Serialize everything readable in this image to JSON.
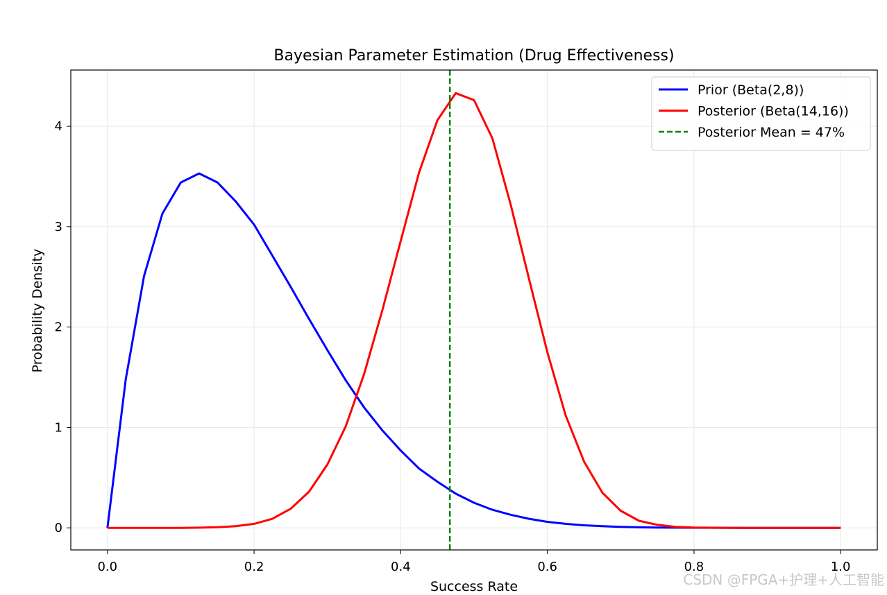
{
  "chart_data": {
    "type": "line",
    "title": "Bayesian Parameter Estimation (Drug Effectiveness)",
    "xlabel": "Success Rate",
    "ylabel": "Probability Density",
    "xlim": [
      -0.05,
      1.05
    ],
    "ylim": [
      -0.22,
      4.56
    ],
    "xticks": [
      0.0,
      0.2,
      0.4,
      0.6,
      0.8,
      1.0
    ],
    "xtick_labels": [
      "0.0",
      "0.2",
      "0.4",
      "0.6",
      "0.8",
      "1.0"
    ],
    "yticks": [
      0,
      1,
      2,
      3,
      4
    ],
    "ytick_labels": [
      "0",
      "1",
      "2",
      "3",
      "4"
    ],
    "grid": true,
    "legend_position": "top-right",
    "series": [
      {
        "name": "Prior (Beta(2,8))",
        "color": "#0000ff",
        "style": "solid",
        "x": [
          0.0,
          0.025,
          0.05,
          0.075,
          0.1,
          0.125,
          0.15,
          0.175,
          0.2,
          0.225,
          0.25,
          0.275,
          0.3,
          0.325,
          0.35,
          0.375,
          0.4,
          0.425,
          0.45,
          0.475,
          0.5,
          0.525,
          0.55,
          0.575,
          0.6,
          0.625,
          0.65,
          0.675,
          0.7,
          0.725,
          0.75,
          0.775,
          0.8,
          0.825,
          0.85,
          0.875,
          0.9,
          0.925,
          0.95,
          0.975,
          1.0
        ],
        "y": [
          0.0,
          1.48,
          2.51,
          3.13,
          3.44,
          3.53,
          3.44,
          3.25,
          3.02,
          2.71,
          2.4,
          2.08,
          1.77,
          1.47,
          1.2,
          0.97,
          0.77,
          0.59,
          0.46,
          0.34,
          0.25,
          0.18,
          0.13,
          0.09,
          0.06,
          0.04,
          0.025,
          0.016,
          0.009,
          0.005,
          0.003,
          0.0015,
          0.0007,
          0.0003,
          0.0001,
          0.0,
          0.0,
          0.0,
          0.0,
          0.0,
          0.0
        ]
      },
      {
        "name": "Posterior (Beta(14,16))",
        "color": "#ff0000",
        "style": "solid",
        "x": [
          0.0,
          0.025,
          0.05,
          0.075,
          0.1,
          0.125,
          0.15,
          0.175,
          0.2,
          0.225,
          0.25,
          0.275,
          0.3,
          0.325,
          0.35,
          0.375,
          0.4,
          0.425,
          0.45,
          0.475,
          0.5,
          0.525,
          0.55,
          0.575,
          0.6,
          0.625,
          0.65,
          0.675,
          0.7,
          0.725,
          0.75,
          0.775,
          0.8,
          0.825,
          0.85,
          0.875,
          0.9,
          0.925,
          0.95,
          0.975,
          1.0
        ],
        "y": [
          0.0,
          0.0,
          0.0,
          0.0,
          0.0,
          0.002,
          0.006,
          0.016,
          0.04,
          0.09,
          0.19,
          0.36,
          0.63,
          1.01,
          1.53,
          2.17,
          2.86,
          3.54,
          4.06,
          4.33,
          4.26,
          3.88,
          3.22,
          2.48,
          1.75,
          1.12,
          0.66,
          0.35,
          0.17,
          0.07,
          0.03,
          0.01,
          0.003,
          0.001,
          0.0,
          0.0,
          0.0,
          0.0,
          0.0,
          0.0,
          0.0
        ]
      },
      {
        "name": "Posterior Mean = 47%",
        "color": "#008000",
        "style": "dashed",
        "type": "vline",
        "x": 0.467
      }
    ]
  },
  "watermark": "CSDN @FPGA+护理+人工智能"
}
